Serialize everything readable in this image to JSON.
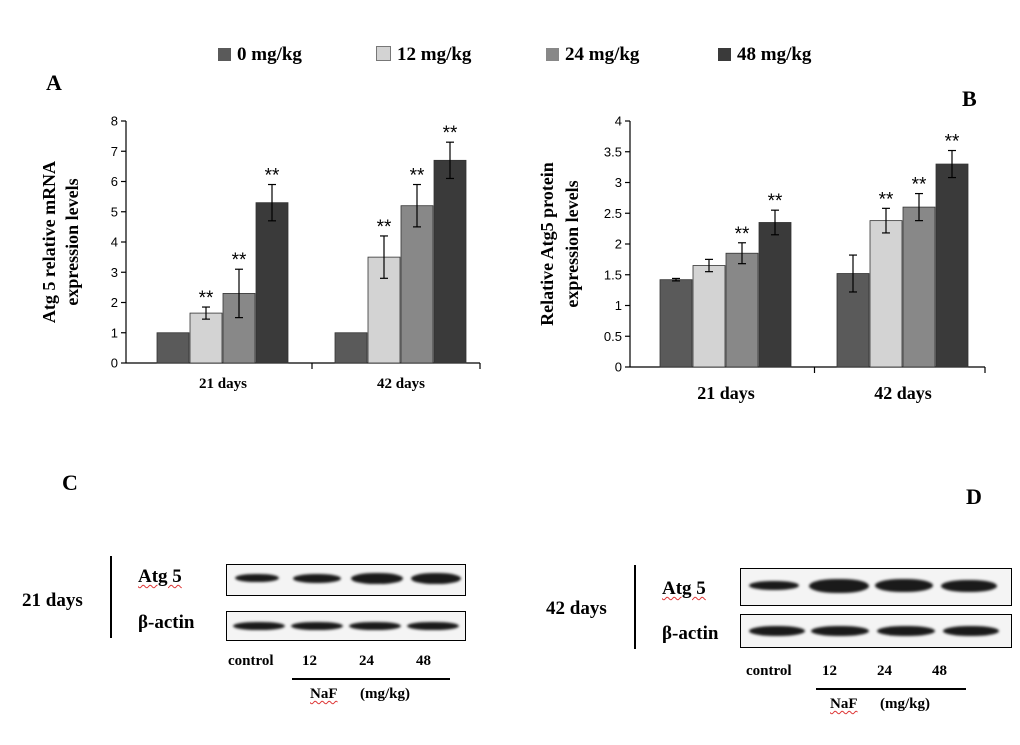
{
  "legend": {
    "items": [
      {
        "label": "0 mg/kg",
        "color": "#5a5a5a"
      },
      {
        "label": "12 mg/kg",
        "color": "#d3d3d3"
      },
      {
        "label": "24 mg/kg",
        "color": "#888888"
      },
      {
        "label": "48 mg/kg",
        "color": "#3a3a3a"
      }
    ]
  },
  "panel_labels": {
    "a": "A",
    "b": "B",
    "c": "C",
    "d": "D"
  },
  "chart_data": [
    {
      "type": "bar",
      "panel": "A",
      "ylabel": "Atg 5 relative mRNA expression levels",
      "ylabel_lines": [
        "Atg 5 relative mRNA",
        "expression levels"
      ],
      "categories": [
        "21 days",
        "42 days"
      ],
      "ylim": [
        0,
        8
      ],
      "yticks": [
        "0",
        "1",
        "2",
        "3",
        "4",
        "5",
        "6",
        "7",
        "8"
      ],
      "grid": false,
      "series": [
        {
          "name": "0 mg/kg",
          "values": [
            1.0,
            1.0
          ],
          "errors": [
            0,
            0
          ],
          "sig": [
            "",
            ""
          ]
        },
        {
          "name": "12 mg/kg",
          "values": [
            1.65,
            3.5
          ],
          "errors": [
            0.2,
            0.7
          ],
          "sig": [
            "**",
            "**"
          ]
        },
        {
          "name": "24 mg/kg",
          "values": [
            2.3,
            5.2
          ],
          "errors": [
            0.8,
            0.7
          ],
          "sig": [
            "**",
            "**"
          ]
        },
        {
          "name": "48 mg/kg",
          "values": [
            5.3,
            6.7
          ],
          "errors": [
            0.6,
            0.6
          ],
          "sig": [
            "**",
            "**"
          ]
        }
      ]
    },
    {
      "type": "bar",
      "panel": "B",
      "ylabel": "Relative Atg5 protein expression levels",
      "ylabel_lines": [
        "Relative Atg5 protein",
        "expression levels"
      ],
      "categories": [
        "21 days",
        "42 days"
      ],
      "ylim": [
        0,
        4
      ],
      "yticks": [
        "0",
        "0.5",
        "1",
        "1.5",
        "2",
        "2.5",
        "3",
        "3.5",
        "4"
      ],
      "grid": false,
      "series": [
        {
          "name": "0 mg/kg",
          "values": [
            1.42,
            1.52
          ],
          "errors": [
            0.02,
            0.3
          ],
          "sig": [
            "",
            ""
          ]
        },
        {
          "name": "12 mg/kg",
          "values": [
            1.65,
            2.38
          ],
          "errors": [
            0.1,
            0.2
          ],
          "sig": [
            "",
            "**"
          ]
        },
        {
          "name": "24 mg/kg",
          "values": [
            1.85,
            2.6
          ],
          "errors": [
            0.17,
            0.22
          ],
          "sig": [
            "**",
            "**"
          ]
        },
        {
          "name": "48 mg/kg",
          "values": [
            2.35,
            3.3
          ],
          "errors": [
            0.2,
            0.22
          ],
          "sig": [
            "**",
            "**"
          ]
        }
      ]
    }
  ],
  "blots": {
    "c": {
      "time_label": "21 days",
      "protein_label": "Atg 5",
      "control_label": "β-actin",
      "lanes": [
        "control",
        "12",
        "24",
        "48"
      ],
      "treatment": "NaF",
      "unit": "(mg/kg)"
    },
    "d": {
      "time_label": "42 days",
      "protein_label": "Atg 5",
      "control_label": "β-actin",
      "lanes": [
        "control",
        "12",
        "24",
        "48"
      ],
      "treatment": "NaF",
      "unit": "(mg/kg)"
    }
  }
}
